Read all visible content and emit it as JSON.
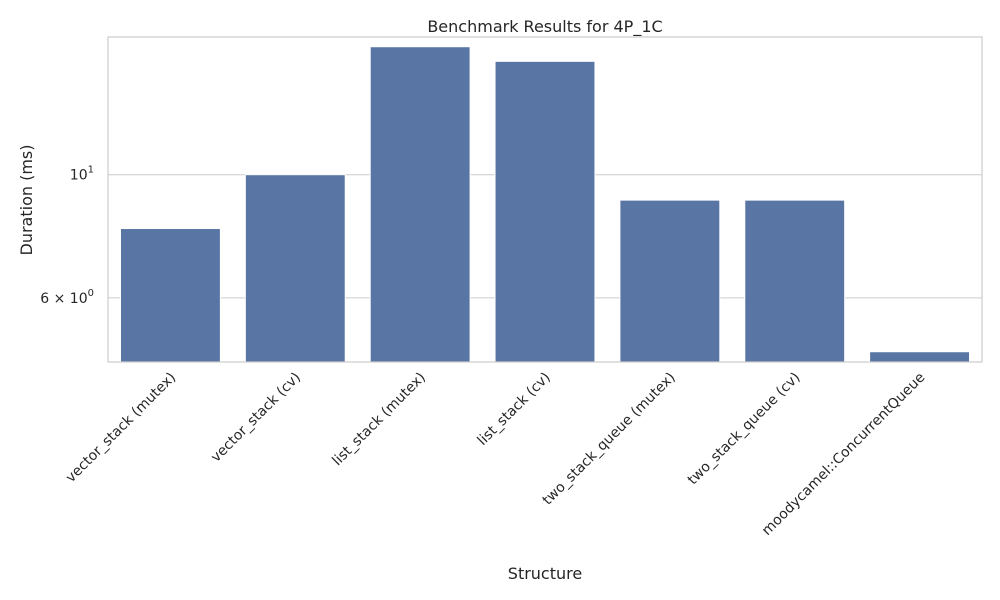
{
  "chart_data": {
    "type": "bar",
    "title": "Benchmark Results for 4P_1C",
    "xlabel": "Structure",
    "ylabel": "Duration (ms)",
    "yscale": "log",
    "ylim": [
      4.6,
      17.7
    ],
    "yticks": [
      {
        "value": 6,
        "label": "6 × 10",
        "exp": "0"
      },
      {
        "value": 10,
        "label": "10",
        "exp": "1"
      }
    ],
    "categories": [
      "vector_stack (mutex)",
      "vector_stack (cv)",
      "list_stack (mutex)",
      "list_stack (cv)",
      "two_stack_queue (mutex)",
      "two_stack_queue (cv)",
      "moodycamel::ConcurrentQueue"
    ],
    "values": [
      8,
      10,
      17,
      16,
      9,
      9,
      4.8
    ],
    "bar_color": "#5875a4",
    "grid": true,
    "legend": "none"
  }
}
